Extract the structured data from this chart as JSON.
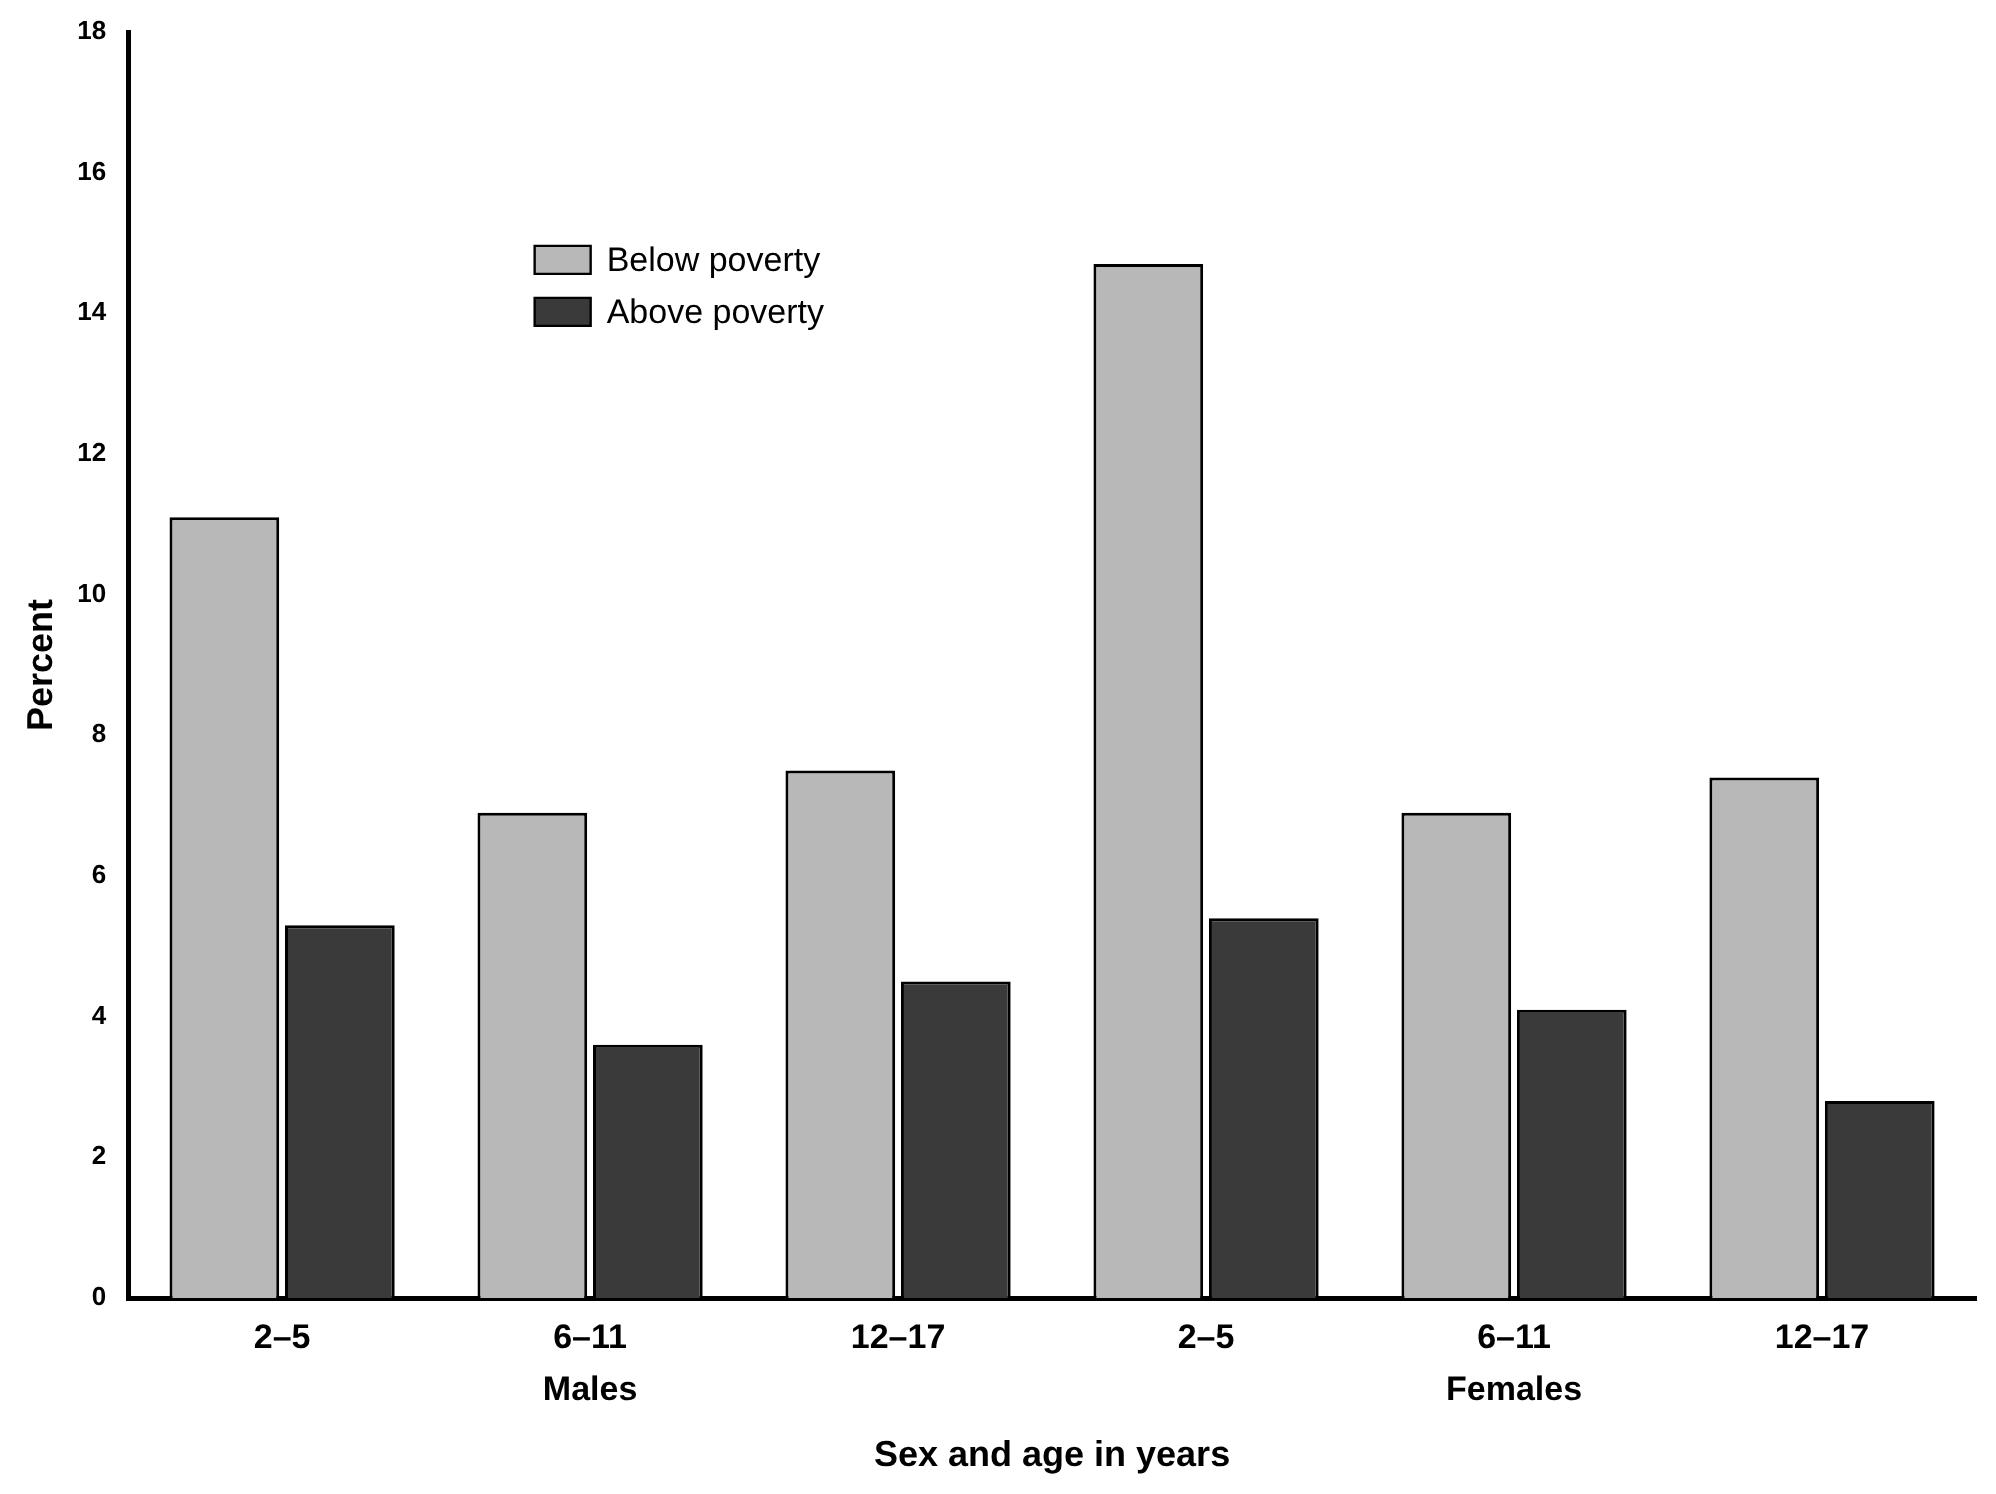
{
  "chart_data": {
    "type": "bar",
    "xlabel": "Sex and age in years",
    "ylabel": "Percent",
    "categories": [
      "2–5",
      "6–11",
      "12–17",
      "2–5",
      "6–11",
      "12–17"
    ],
    "series": [
      {
        "name": "Below poverty",
        "color": "#b8b8b8",
        "values": [
          11.1,
          6.9,
          7.5,
          14.7,
          6.9,
          7.4
        ]
      },
      {
        "name": "Above poverty",
        "color": "#3a3a3a",
        "values": [
          5.3,
          3.6,
          4.5,
          5.4,
          4.1,
          2.8
        ]
      }
    ],
    "ylim": [
      0,
      18
    ],
    "yticks": [
      0,
      2,
      4,
      6,
      8,
      10,
      12,
      14,
      16,
      18
    ],
    "grid": false,
    "legend": "top left",
    "annotations": [
      "Males",
      "Females"
    ]
  }
}
